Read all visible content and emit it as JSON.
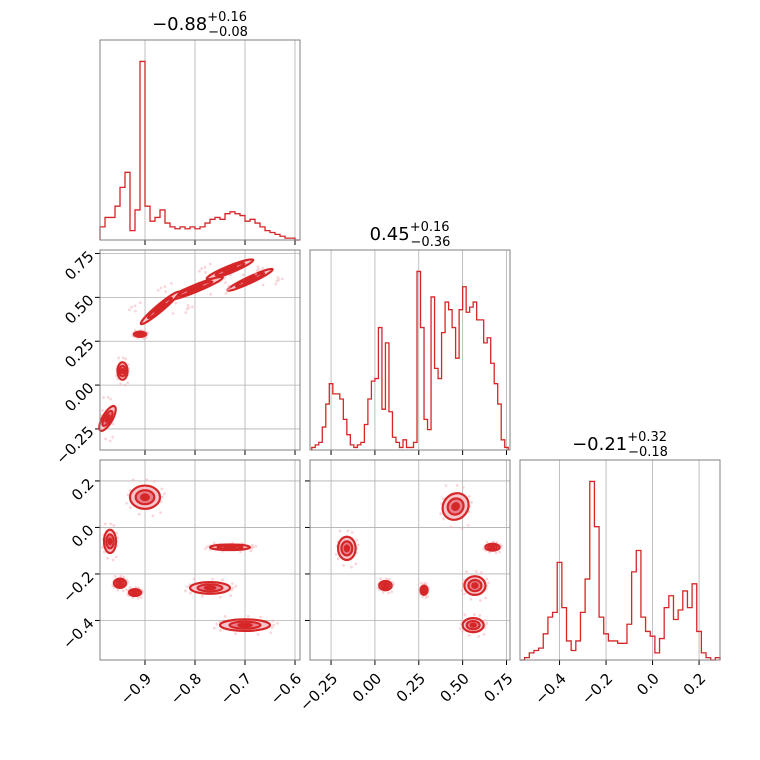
{
  "chart_data": {
    "type": "corner",
    "color": "#d62728",
    "parameters": [
      {
        "title_value": "−0.88",
        "title_plus": "+0.16",
        "title_minus": "−0.08",
        "range": [
          -0.99,
          -0.59
        ]
      },
      {
        "title_value": "0.45",
        "title_plus": "+0.16",
        "title_minus": "−0.36",
        "range": [
          -0.37,
          0.77
        ]
      },
      {
        "title_value": "−0.21",
        "title_plus": "+0.32",
        "title_minus": "−0.18",
        "range": [
          -0.57,
          0.29
        ]
      }
    ],
    "ticks": {
      "p0": [
        {
          "v": -0.9,
          "label": "−0.9"
        },
        {
          "v": -0.8,
          "label": "−0.8"
        },
        {
          "v": -0.7,
          "label": "−0.7"
        },
        {
          "v": -0.6,
          "label": "−0.6"
        }
      ],
      "p1": [
        {
          "v": -0.25,
          "label": "−0.25"
        },
        {
          "v": 0.0,
          "label": "0.00"
        },
        {
          "v": 0.25,
          "label": "0.25"
        },
        {
          "v": 0.5,
          "label": "0.50"
        },
        {
          "v": 0.75,
          "label": "0.75"
        }
      ],
      "p2_y": [
        {
          "v": 0.2,
          "label": "0.2"
        },
        {
          "v": 0.0,
          "label": "0.0"
        },
        {
          "v": -0.2,
          "label": "−0.2"
        },
        {
          "v": -0.4,
          "label": "−0.4"
        }
      ],
      "p2_x": [
        {
          "v": -0.4,
          "label": "−0.4"
        },
        {
          "v": -0.2,
          "label": "−0.2"
        },
        {
          "v": 0.0,
          "label": "0.0"
        },
        {
          "v": 0.2,
          "label": "0.2"
        }
      ]
    },
    "hist_p0": {
      "x": [
        -0.99,
        -0.98,
        -0.97,
        -0.96,
        -0.95,
        -0.94,
        -0.93,
        -0.92,
        -0.91,
        -0.9,
        -0.89,
        -0.88,
        -0.87,
        -0.86,
        -0.85,
        -0.84,
        -0.83,
        -0.82,
        -0.81,
        -0.8,
        -0.79,
        -0.78,
        -0.77,
        -0.76,
        -0.75,
        -0.74,
        -0.73,
        -0.72,
        -0.71,
        -0.7,
        -0.69,
        -0.68,
        -0.67,
        -0.66,
        -0.65,
        -0.64,
        -0.63,
        -0.62,
        -0.61,
        -0.6
      ],
      "y": [
        0.07,
        0.12,
        0.12,
        0.18,
        0.28,
        0.36,
        0.05,
        0.16,
        0.95,
        0.18,
        0.1,
        0.12,
        0.16,
        0.09,
        0.07,
        0.06,
        0.07,
        0.06,
        0.07,
        0.06,
        0.07,
        0.09,
        0.11,
        0.12,
        0.11,
        0.14,
        0.15,
        0.14,
        0.13,
        0.1,
        0.11,
        0.09,
        0.07,
        0.05,
        0.04,
        0.03,
        0.02,
        0.01,
        0.01,
        0.0
      ]
    },
    "hist_p1": {
      "x": [
        -0.36,
        -0.34,
        -0.32,
        -0.3,
        -0.28,
        -0.26,
        -0.24,
        -0.22,
        -0.2,
        -0.18,
        -0.16,
        -0.14,
        -0.12,
        -0.1,
        -0.08,
        -0.06,
        -0.04,
        -0.02,
        0.0,
        0.02,
        0.04,
        0.06,
        0.08,
        0.1,
        0.12,
        0.14,
        0.16,
        0.18,
        0.2,
        0.22,
        0.24,
        0.26,
        0.28,
        0.3,
        0.32,
        0.34,
        0.36,
        0.38,
        0.4,
        0.42,
        0.44,
        0.46,
        0.48,
        0.5,
        0.52,
        0.54,
        0.56,
        0.58,
        0.6,
        0.62,
        0.64,
        0.66,
        0.68,
        0.7,
        0.72,
        0.74
      ],
      "y": [
        0.01,
        0.02,
        0.03,
        0.09,
        0.18,
        0.26,
        0.22,
        0.22,
        0.2,
        0.12,
        0.06,
        0.02,
        0.01,
        0.02,
        0.03,
        0.1,
        0.2,
        0.27,
        0.28,
        0.48,
        0.16,
        0.42,
        0.15,
        0.05,
        0.03,
        0.01,
        0.04,
        0.01,
        0.01,
        0.03,
        0.7,
        0.48,
        0.12,
        0.08,
        0.6,
        0.32,
        0.28,
        0.46,
        0.58,
        0.55,
        0.48,
        0.36,
        0.55,
        0.64,
        0.54,
        0.56,
        0.58,
        0.51,
        0.51,
        0.42,
        0.44,
        0.34,
        0.26,
        0.18,
        0.04,
        0.01
      ]
    },
    "hist_p2": {
      "x": [
        -0.57,
        -0.55,
        -0.53,
        -0.51,
        -0.49,
        -0.47,
        -0.45,
        -0.43,
        -0.41,
        -0.39,
        -0.37,
        -0.35,
        -0.33,
        -0.31,
        -0.29,
        -0.27,
        -0.25,
        -0.23,
        -0.21,
        -0.19,
        -0.17,
        -0.15,
        -0.13,
        -0.11,
        -0.09,
        -0.07,
        -0.05,
        -0.03,
        -0.01,
        0.01,
        0.03,
        0.05,
        0.07,
        0.09,
        0.11,
        0.13,
        0.15,
        0.17,
        0.19,
        0.21,
        0.23,
        0.25,
        0.27
      ],
      "y": [
        0.0,
        0.01,
        0.03,
        0.04,
        0.05,
        0.11,
        0.18,
        0.2,
        0.41,
        0.22,
        0.08,
        0.04,
        0.08,
        0.2,
        0.34,
        0.75,
        0.56,
        0.18,
        0.11,
        0.08,
        0.08,
        0.07,
        0.07,
        0.15,
        0.37,
        0.46,
        0.18,
        0.12,
        0.1,
        0.03,
        0.09,
        0.22,
        0.27,
        0.17,
        0.21,
        0.29,
        0.22,
        0.32,
        0.12,
        0.03,
        0.01,
        0.0,
        0.01
      ]
    },
    "contours_p0_p1": [
      {
        "cx": -0.69,
        "cy": 0.6,
        "rx": 0.05,
        "ry": 0.018,
        "rot": -25
      },
      {
        "cx": -0.73,
        "cy": 0.66,
        "rx": 0.05,
        "ry": 0.02,
        "rot": -22
      },
      {
        "cx": -0.8,
        "cy": 0.55,
        "rx": 0.06,
        "ry": 0.02,
        "rot": -22
      },
      {
        "cx": -0.87,
        "cy": 0.44,
        "rx": 0.05,
        "ry": 0.02,
        "rot": -40
      },
      {
        "cx": -0.91,
        "cy": 0.29,
        "rx": 0.012,
        "ry": 0.015,
        "rot": 0
      },
      {
        "cx": -0.945,
        "cy": 0.08,
        "rx": 0.01,
        "ry": 0.05,
        "rot": 0
      },
      {
        "cx": -0.975,
        "cy": -0.19,
        "rx": 0.01,
        "ry": 0.08,
        "rot": 30
      }
    ],
    "contours_p0_p2": [
      {
        "cx": -0.9,
        "cy": 0.13,
        "rx": 0.03,
        "ry": 0.05,
        "rot": 0
      },
      {
        "cx": -0.73,
        "cy": -0.085,
        "rx": 0.04,
        "ry": 0.012,
        "rot": 0
      },
      {
        "cx": -0.97,
        "cy": -0.06,
        "rx": 0.012,
        "ry": 0.05,
        "rot": 0
      },
      {
        "cx": -0.95,
        "cy": -0.24,
        "rx": 0.012,
        "ry": 0.02,
        "rot": 0
      },
      {
        "cx": -0.92,
        "cy": -0.28,
        "rx": 0.012,
        "ry": 0.015,
        "rot": 0
      },
      {
        "cx": -0.77,
        "cy": -0.26,
        "rx": 0.04,
        "ry": 0.025,
        "rot": 0
      },
      {
        "cx": -0.7,
        "cy": -0.42,
        "rx": 0.05,
        "ry": 0.025,
        "rot": 0
      }
    ],
    "contours_p1_p2": [
      {
        "cx": 0.46,
        "cy": 0.09,
        "rx": 0.07,
        "ry": 0.06,
        "rot": 40
      },
      {
        "cx": 0.67,
        "cy": -0.085,
        "rx": 0.04,
        "ry": 0.015,
        "rot": 0
      },
      {
        "cx": -0.16,
        "cy": -0.09,
        "rx": 0.05,
        "ry": 0.05,
        "rot": 0
      },
      {
        "cx": 0.06,
        "cy": -0.25,
        "rx": 0.035,
        "ry": 0.02,
        "rot": 0
      },
      {
        "cx": 0.28,
        "cy": -0.27,
        "rx": 0.02,
        "ry": 0.02,
        "rot": 0
      },
      {
        "cx": 0.57,
        "cy": -0.25,
        "rx": 0.06,
        "ry": 0.04,
        "rot": 0
      },
      {
        "cx": 0.56,
        "cy": -0.42,
        "rx": 0.06,
        "ry": 0.03,
        "rot": 0
      }
    ]
  }
}
